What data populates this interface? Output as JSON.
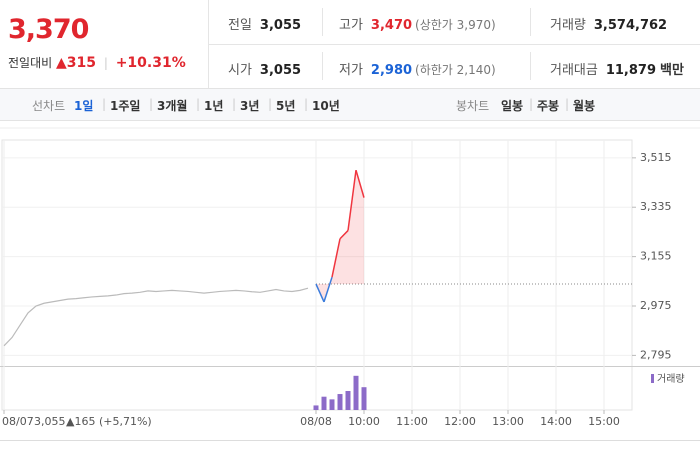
{
  "quote": {
    "price": "3,370",
    "change_label": "전일대비",
    "change": "▲315",
    "change_rate": "+10.31%"
  },
  "stats": [
    [
      {
        "label": "전일",
        "value": "3,055"
      },
      {
        "label": "고가",
        "value": "3,470",
        "note": "(상한가 3,970)"
      },
      {
        "label": "거래량",
        "value": "3,574,762"
      }
    ],
    [
      {
        "label": "시가",
        "value": "3,055"
      },
      {
        "label": "저가",
        "value": "2,980",
        "note": "(하한가 2,140)"
      },
      {
        "label": "거래대금",
        "value": "11,879",
        "unit": "백만"
      }
    ]
  ],
  "tabs": {
    "line_label": "선차트",
    "line_periods": [
      "1일",
      "1주일",
      "3개월",
      "1년",
      "3년",
      "5년",
      "10년"
    ],
    "active": "1일",
    "candle_label": "봉차트",
    "candle_periods": [
      "일봉",
      "주봉",
      "월봉"
    ]
  },
  "chart_data": {
    "type": "line",
    "categories": [
      "08/07",
      null,
      null,
      null,
      null,
      null,
      null,
      null,
      null,
      null,
      null,
      null,
      null,
      null,
      null,
      null,
      null,
      null,
      null,
      null,
      null,
      null,
      null,
      null,
      null,
      null,
      null,
      null,
      null,
      null,
      null,
      null,
      null,
      null,
      null,
      null,
      null,
      null,
      null,
      "08/08",
      null,
      null,
      null,
      null,
      null,
      "10:00",
      null,
      null,
      null,
      null,
      null,
      "11:00",
      null,
      null,
      null,
      null,
      null,
      "12:00",
      null,
      null,
      null,
      null,
      null,
      "13:00",
      null,
      null,
      null,
      null,
      null,
      "14:00",
      null,
      null,
      null,
      null,
      null,
      "15:00",
      null,
      null,
      null
    ],
    "series": [
      {
        "color": "#bbbbbb",
        "values": [
          2830,
          2860,
          2905,
          2950,
          2975,
          2985,
          2990,
          2995,
          3000,
          3002,
          3005,
          3008,
          3010,
          3012,
          3015,
          3020,
          3022,
          3025,
          3030,
          3028,
          3030,
          3032,
          3030,
          3028,
          3025,
          3022,
          3025,
          3028,
          3030,
          3032,
          3030,
          3027,
          3025,
          3030,
          3035,
          3030,
          3028,
          3032,
          3040,
          null,
          null,
          null,
          null,
          null,
          null,
          null,
          null,
          null,
          null,
          null,
          null,
          null,
          null,
          null,
          null,
          null,
          null,
          null,
          null,
          null,
          null,
          null,
          null,
          null,
          null,
          null,
          null,
          null,
          null,
          null,
          null,
          null,
          null,
          null,
          null,
          null,
          null,
          null,
          null
        ]
      },
      {
        "color": "#f0353f",
        "down_color": "#3a7bdc",
        "values": [
          null,
          null,
          null,
          null,
          null,
          null,
          null,
          null,
          null,
          null,
          null,
          null,
          null,
          null,
          null,
          null,
          null,
          null,
          null,
          null,
          null,
          null,
          null,
          null,
          null,
          null,
          null,
          null,
          null,
          null,
          null,
          null,
          null,
          null,
          null,
          null,
          null,
          null,
          null,
          3055,
          2990,
          3080,
          3220,
          3250,
          3470,
          3370,
          null,
          null,
          null,
          null,
          null,
          null,
          null,
          null,
          null,
          null,
          null,
          null,
          null,
          null,
          null,
          null,
          null,
          null,
          null,
          null,
          null,
          null,
          null,
          null,
          null,
          null,
          null,
          null,
          null,
          null,
          null,
          null,
          null
        ]
      }
    ],
    "reference": 3055,
    "ylim": [
      2760,
      3580
    ],
    "yticks": [
      {
        "value": 3515,
        "label": "3,515"
      },
      {
        "value": 3335,
        "label": "3,335"
      },
      {
        "value": 3155,
        "label": "3,155"
      },
      {
        "value": 2975,
        "label": "2,975"
      },
      {
        "value": 2795,
        "label": "2,795"
      }
    ],
    "grid": true,
    "prev_day_price": "3,055",
    "prev_day_change": "▲165 (+5,71%)",
    "volume": {
      "name": "거래량",
      "color": "#8c6bc8",
      "ylim": [
        0,
        1000000
      ],
      "values": [
        null,
        null,
        null,
        null,
        null,
        null,
        null,
        null,
        null,
        null,
        null,
        null,
        null,
        null,
        null,
        null,
        null,
        null,
        null,
        null,
        null,
        null,
        null,
        null,
        null,
        null,
        null,
        null,
        null,
        null,
        null,
        null,
        null,
        null,
        null,
        null,
        null,
        null,
        null,
        120000,
        350000,
        280000,
        420000,
        500000,
        900000,
        600000,
        null,
        null,
        null,
        null,
        null,
        null,
        null,
        null,
        null,
        null,
        null,
        null,
        null,
        null,
        null,
        null,
        null,
        null,
        null,
        null,
        null,
        null,
        null,
        null,
        null,
        null,
        null,
        null,
        null,
        null,
        null,
        null,
        null
      ]
    }
  }
}
